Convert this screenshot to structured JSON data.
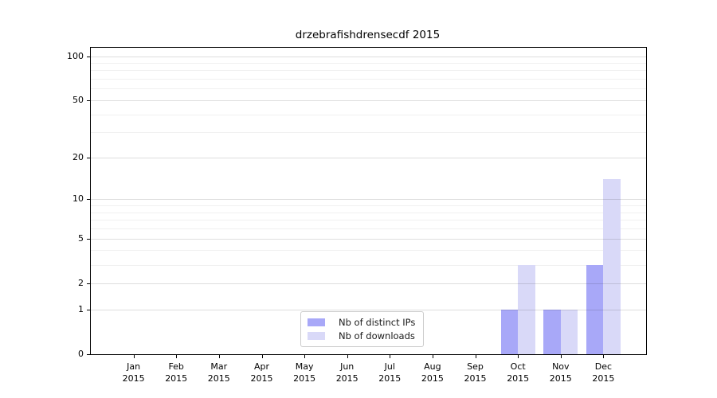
{
  "figure": {
    "title": "drzebrafishdrensecdf 2015"
  },
  "chart_data": {
    "type": "bar",
    "title": "drzebrafishdrensecdf 2015",
    "x_axis": {
      "categories": [
        "Jan",
        "Feb",
        "Mar",
        "Apr",
        "May",
        "Jun",
        "Jul",
        "Aug",
        "Sep",
        "Oct",
        "Nov",
        "Dec"
      ],
      "year_label": "2015"
    },
    "y_axis": {
      "scale": "log1p",
      "ylim": [
        0,
        113
      ],
      "major_ticks": [
        0,
        1,
        2,
        5,
        10,
        20,
        50,
        100
      ],
      "minor_ticks": [
        3,
        4,
        6,
        7,
        8,
        9,
        30,
        40,
        60,
        70,
        80,
        90
      ],
      "grid": true
    },
    "series": [
      {
        "name": "Nb of distinct IPs",
        "color": "#a8a8f8",
        "values": [
          0,
          0,
          0,
          0,
          0,
          0,
          0,
          0,
          0,
          1,
          1,
          3
        ]
      },
      {
        "name": "Nb of downloads",
        "color": "#d9d9f8",
        "values": [
          0,
          0,
          0,
          0,
          0,
          0,
          0,
          0,
          0,
          3,
          1,
          14
        ]
      }
    ],
    "legend": {
      "position": "lower center",
      "entries": [
        "Nb of distinct IPs",
        "Nb of downloads"
      ]
    },
    "colors": {
      "bar_distinct_ips": "#a8a8f8",
      "bar_downloads": "#d9d9f8",
      "major_grid": "#d9d9d9",
      "minor_grid": "#f0f0f0",
      "spine": "#000000",
      "background": "#ffffff"
    }
  }
}
